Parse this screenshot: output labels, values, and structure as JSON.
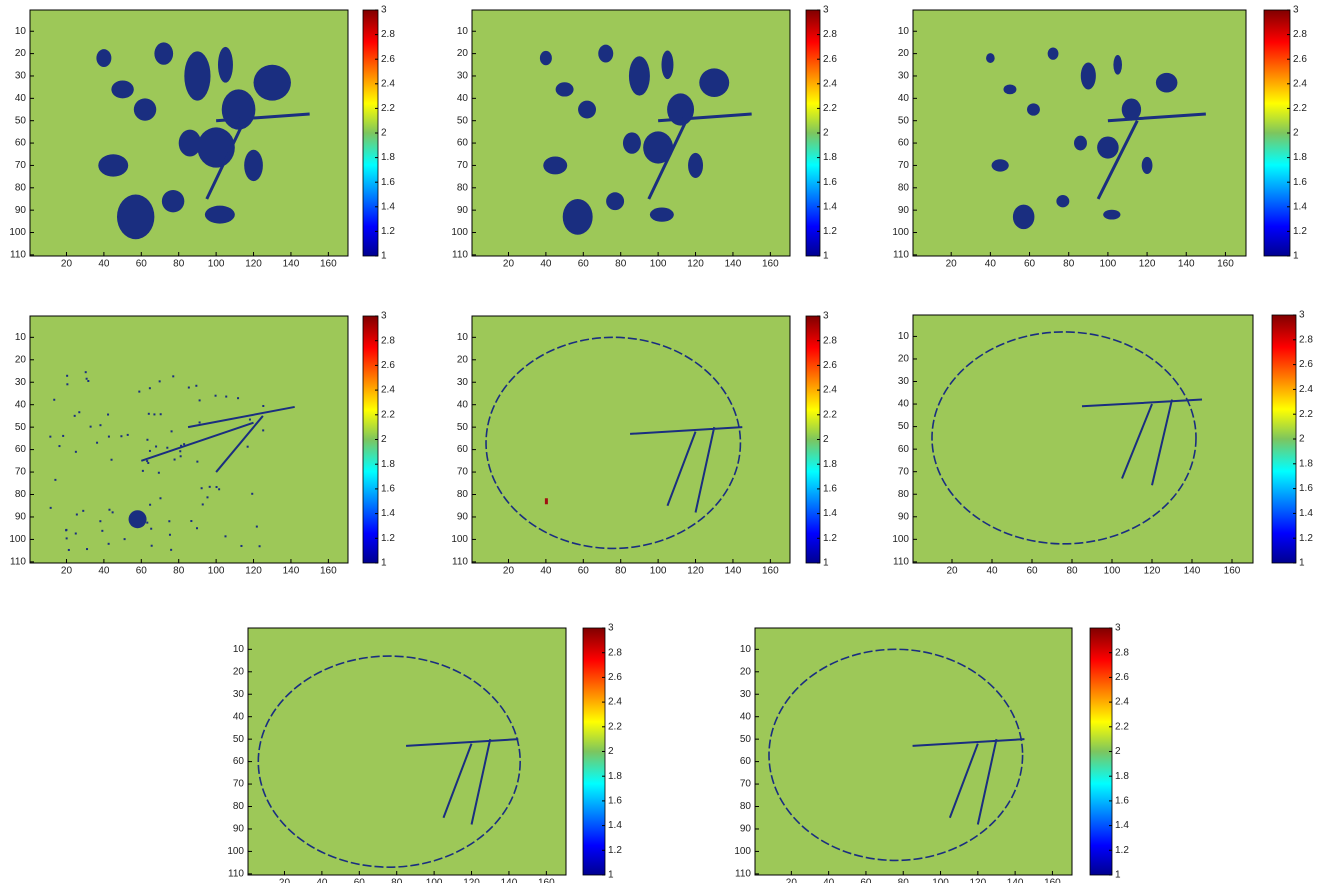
{
  "chart_data": [
    {
      "type": "heatmap",
      "colormap": "jet",
      "xlim": [
        0.5,
        170.5
      ],
      "ylim": [
        110.5,
        0.5
      ],
      "xticks": [
        20,
        40,
        60,
        80,
        100,
        120,
        140,
        160
      ],
      "yticks": [
        10,
        20,
        30,
        40,
        50,
        60,
        70,
        80,
        90,
        100,
        110
      ],
      "clim": [
        1,
        3
      ],
      "cticks": [
        1,
        1.2,
        1.4,
        1.6,
        1.8,
        2,
        2.2,
        2.4,
        2.6,
        2.8,
        3
      ]
    },
    {
      "type": "heatmap",
      "colormap": "jet",
      "xlim": [
        0.5,
        170.5
      ],
      "ylim": [
        110.5,
        0.5
      ],
      "xticks": [
        20,
        40,
        60,
        80,
        100,
        120,
        140,
        160
      ],
      "yticks": [
        10,
        20,
        30,
        40,
        50,
        60,
        70,
        80,
        90,
        100,
        110
      ],
      "clim": [
        1,
        3
      ],
      "cticks": [
        1,
        1.2,
        1.4,
        1.6,
        1.8,
        2,
        2.2,
        2.4,
        2.6,
        2.8,
        3
      ]
    },
    {
      "type": "heatmap",
      "colormap": "jet",
      "xlim": [
        0.5,
        170.5
      ],
      "ylim": [
        110.5,
        0.5
      ],
      "xticks": [
        20,
        40,
        60,
        80,
        100,
        120,
        140,
        160
      ],
      "yticks": [
        10,
        20,
        30,
        40,
        50,
        60,
        70,
        80,
        90,
        100,
        110
      ],
      "clim": [
        1,
        3
      ],
      "cticks": [
        1,
        1.2,
        1.4,
        1.6,
        1.8,
        2,
        2.2,
        2.4,
        2.6,
        2.8,
        3
      ]
    },
    {
      "type": "heatmap",
      "colormap": "jet",
      "xlim": [
        0.5,
        170.5
      ],
      "ylim": [
        110.5,
        0.5
      ],
      "xticks": [
        20,
        40,
        60,
        80,
        100,
        120,
        140,
        160
      ],
      "yticks": [
        10,
        20,
        30,
        40,
        50,
        60,
        70,
        80,
        90,
        100,
        110
      ],
      "clim": [
        1,
        3
      ],
      "cticks": [
        1,
        1.2,
        1.4,
        1.6,
        1.8,
        2,
        2.2,
        2.4,
        2.6,
        2.8,
        3
      ]
    },
    {
      "type": "heatmap",
      "colormap": "jet",
      "xlim": [
        0.5,
        170.5
      ],
      "ylim": [
        110.5,
        0.5
      ],
      "xticks": [
        20,
        40,
        60,
        80,
        100,
        120,
        140,
        160
      ],
      "yticks": [
        10,
        20,
        30,
        40,
        50,
        60,
        70,
        80,
        90,
        100,
        110
      ],
      "clim": [
        1,
        3
      ],
      "cticks": [
        1,
        1.2,
        1.4,
        1.6,
        1.8,
        2,
        2.2,
        2.4,
        2.6,
        2.8,
        3
      ]
    },
    {
      "type": "heatmap",
      "colormap": "jet",
      "xlim": [
        0.5,
        170.5
      ],
      "ylim": [
        110.5,
        0.5
      ],
      "xticks": [
        20,
        40,
        60,
        80,
        100,
        120,
        140,
        160
      ],
      "yticks": [
        10,
        20,
        30,
        40,
        50,
        60,
        70,
        80,
        90,
        100,
        110
      ],
      "clim": [
        1,
        3
      ],
      "cticks": [
        1,
        1.2,
        1.4,
        1.6,
        1.8,
        2,
        2.2,
        2.4,
        2.6,
        2.8,
        3
      ]
    },
    {
      "type": "heatmap",
      "colormap": "jet",
      "xlim": [
        0.5,
        170.5
      ],
      "ylim": [
        110.5,
        0.5
      ],
      "xticks": [
        20,
        40,
        60,
        80,
        100,
        120,
        140,
        160
      ],
      "yticks": [
        10,
        20,
        30,
        40,
        50,
        60,
        70,
        80,
        90,
        100,
        110
      ],
      "clim": [
        1,
        3
      ],
      "cticks": [
        1,
        1.2,
        1.4,
        1.6,
        1.8,
        2,
        2.2,
        2.4,
        2.6,
        2.8,
        3
      ]
    },
    {
      "type": "heatmap",
      "colormap": "jet",
      "xlim": [
        0.5,
        170.5
      ],
      "ylim": [
        110.5,
        0.5
      ],
      "xticks": [
        20,
        40,
        60,
        80,
        100,
        120,
        140,
        160
      ],
      "yticks": [
        10,
        20,
        30,
        40,
        50,
        60,
        70,
        80,
        90,
        100,
        110
      ],
      "clim": [
        1,
        3
      ],
      "cticks": [
        1,
        1.2,
        1.4,
        1.6,
        1.8,
        2,
        2.2,
        2.4,
        2.6,
        2.8,
        3
      ]
    }
  ]
}
